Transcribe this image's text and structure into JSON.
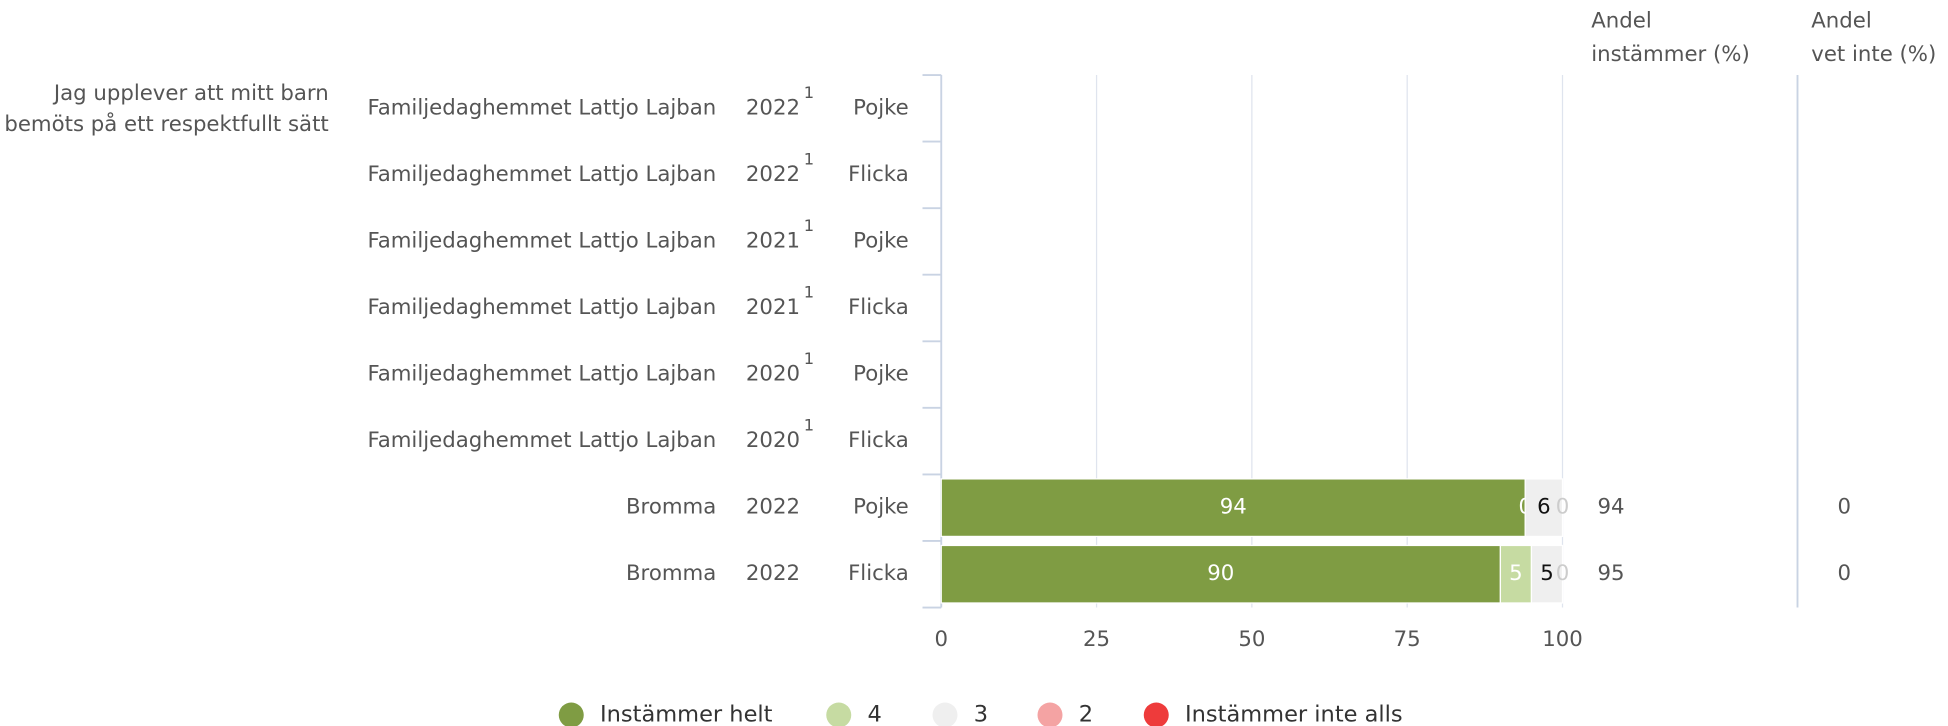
{
  "chart_data": {
    "type": "bar",
    "orientation": "horizontal",
    "stacked": true,
    "question": [
      "Jag upplever att mitt barn",
      "bemöts på ett respektfullt sätt"
    ],
    "rows": [
      {
        "unit": "Familjedaghemmet Lattjo Lajban",
        "year": "2022",
        "note": "1",
        "group": "Pojke"
      },
      {
        "unit": "Familjedaghemmet Lattjo Lajban",
        "year": "2022",
        "note": "1",
        "group": "Flicka"
      },
      {
        "unit": "Familjedaghemmet Lattjo Lajban",
        "year": "2021",
        "note": "1",
        "group": "Pojke"
      },
      {
        "unit": "Familjedaghemmet Lattjo Lajban",
        "year": "2021",
        "note": "1",
        "group": "Flicka"
      },
      {
        "unit": "Familjedaghemmet Lattjo Lajban",
        "year": "2020",
        "note": "1",
        "group": "Pojke"
      },
      {
        "unit": "Familjedaghemmet Lattjo Lajban",
        "year": "2020",
        "note": "1",
        "group": "Flicka"
      },
      {
        "unit": "Bromma",
        "year": "2022",
        "group": "Pojke"
      },
      {
        "unit": "Bromma",
        "year": "2022",
        "group": "Flicka"
      }
    ],
    "series": [
      {
        "name": "Instämmer helt",
        "color": "#7f9c43",
        "label_color": "#ffffff",
        "values": [
          null,
          null,
          null,
          null,
          null,
          null,
          94,
          90
        ]
      },
      {
        "name": "4",
        "color": "#c6dba2",
        "label_color": "#ffffff",
        "values": [
          null,
          null,
          null,
          null,
          null,
          null,
          0,
          5
        ]
      },
      {
        "name": "3",
        "color": "#efefef",
        "label_color": "#111111",
        "values": [
          null,
          null,
          null,
          null,
          null,
          null,
          6,
          5
        ]
      },
      {
        "name": "2",
        "color": "#f4a3a3",
        "label_color": "#cccccc",
        "values": [
          null,
          null,
          null,
          null,
          null,
          null,
          0,
          0
        ]
      },
      {
        "name": "Instämmer inte alls",
        "color": "#ee3b3b",
        "label_color": "#ffffff",
        "values": [
          null,
          null,
          null,
          null,
          null,
          null,
          null,
          null
        ]
      }
    ],
    "xlim": [
      0,
      100
    ],
    "xticks": [
      0,
      25,
      50,
      75,
      100
    ],
    "grid": true,
    "columns": [
      {
        "header": [
          "Andel",
          "instämmer (%)"
        ],
        "values": [
          null,
          null,
          null,
          null,
          null,
          null,
          94,
          95
        ]
      },
      {
        "header": [
          "Andel",
          "vet inte (%)"
        ],
        "values": [
          null,
          null,
          null,
          null,
          null,
          null,
          0,
          0
        ]
      }
    ],
    "legend": "bottom"
  }
}
